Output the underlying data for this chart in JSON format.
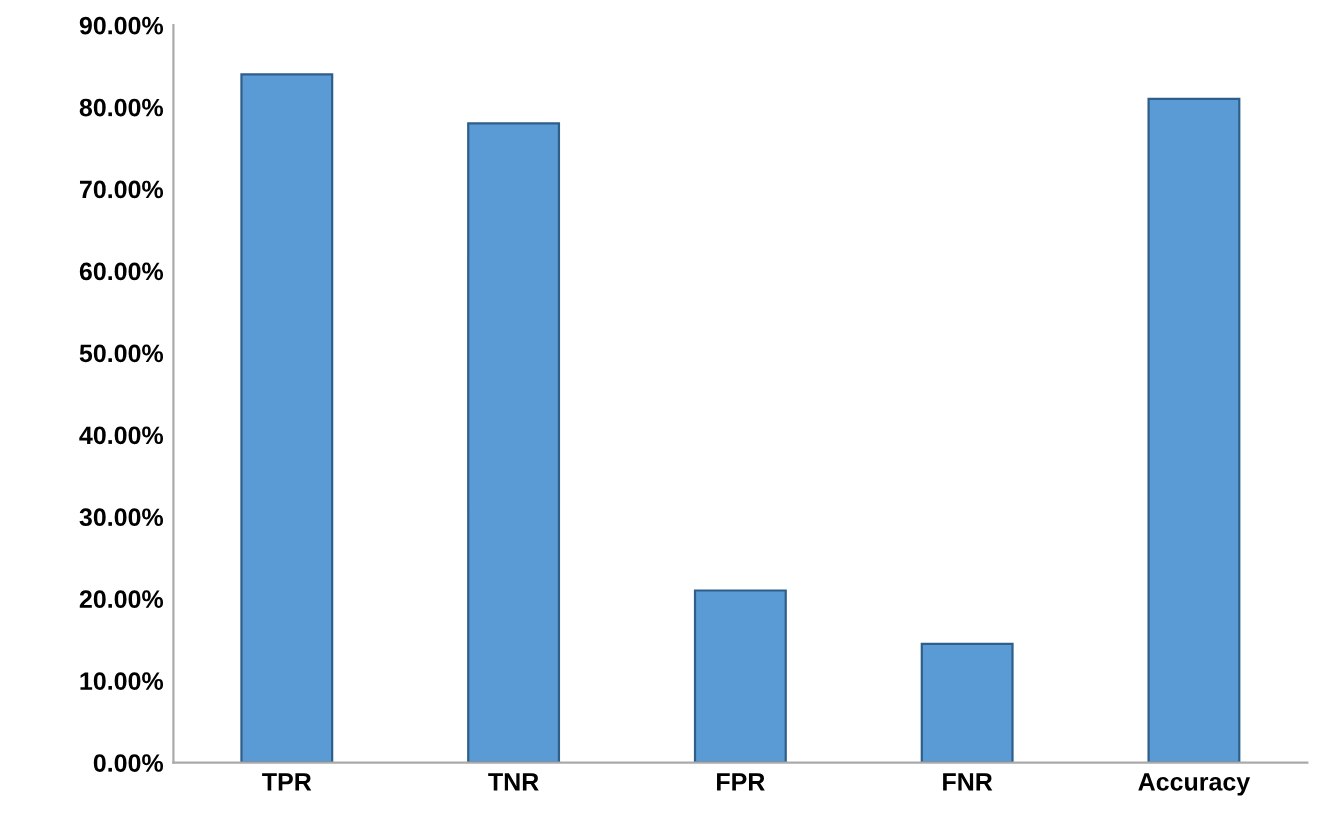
{
  "chart_data": {
    "type": "bar",
    "categories": [
      "TPR",
      "TNR",
      "FPR",
      "FNR",
      "Accuracy"
    ],
    "values": [
      84,
      78,
      21,
      14.5,
      81
    ],
    "color": "#5b9bd5",
    "ylim": [
      0,
      90
    ],
    "yticks": [
      {
        "value": 0,
        "label": "0.00%"
      },
      {
        "value": 10,
        "label": "10.00%"
      },
      {
        "value": 20,
        "label": "20.00%"
      },
      {
        "value": 30,
        "label": "30.00%"
      },
      {
        "value": 40,
        "label": "40.00%"
      },
      {
        "value": 50,
        "label": "50.00%"
      },
      {
        "value": 60,
        "label": "60.00%"
      },
      {
        "value": 70,
        "label": "70.00%"
      },
      {
        "value": 80,
        "label": "80.00%"
      },
      {
        "value": 90,
        "label": "90.00%"
      }
    ],
    "grid": false,
    "legend": false
  }
}
